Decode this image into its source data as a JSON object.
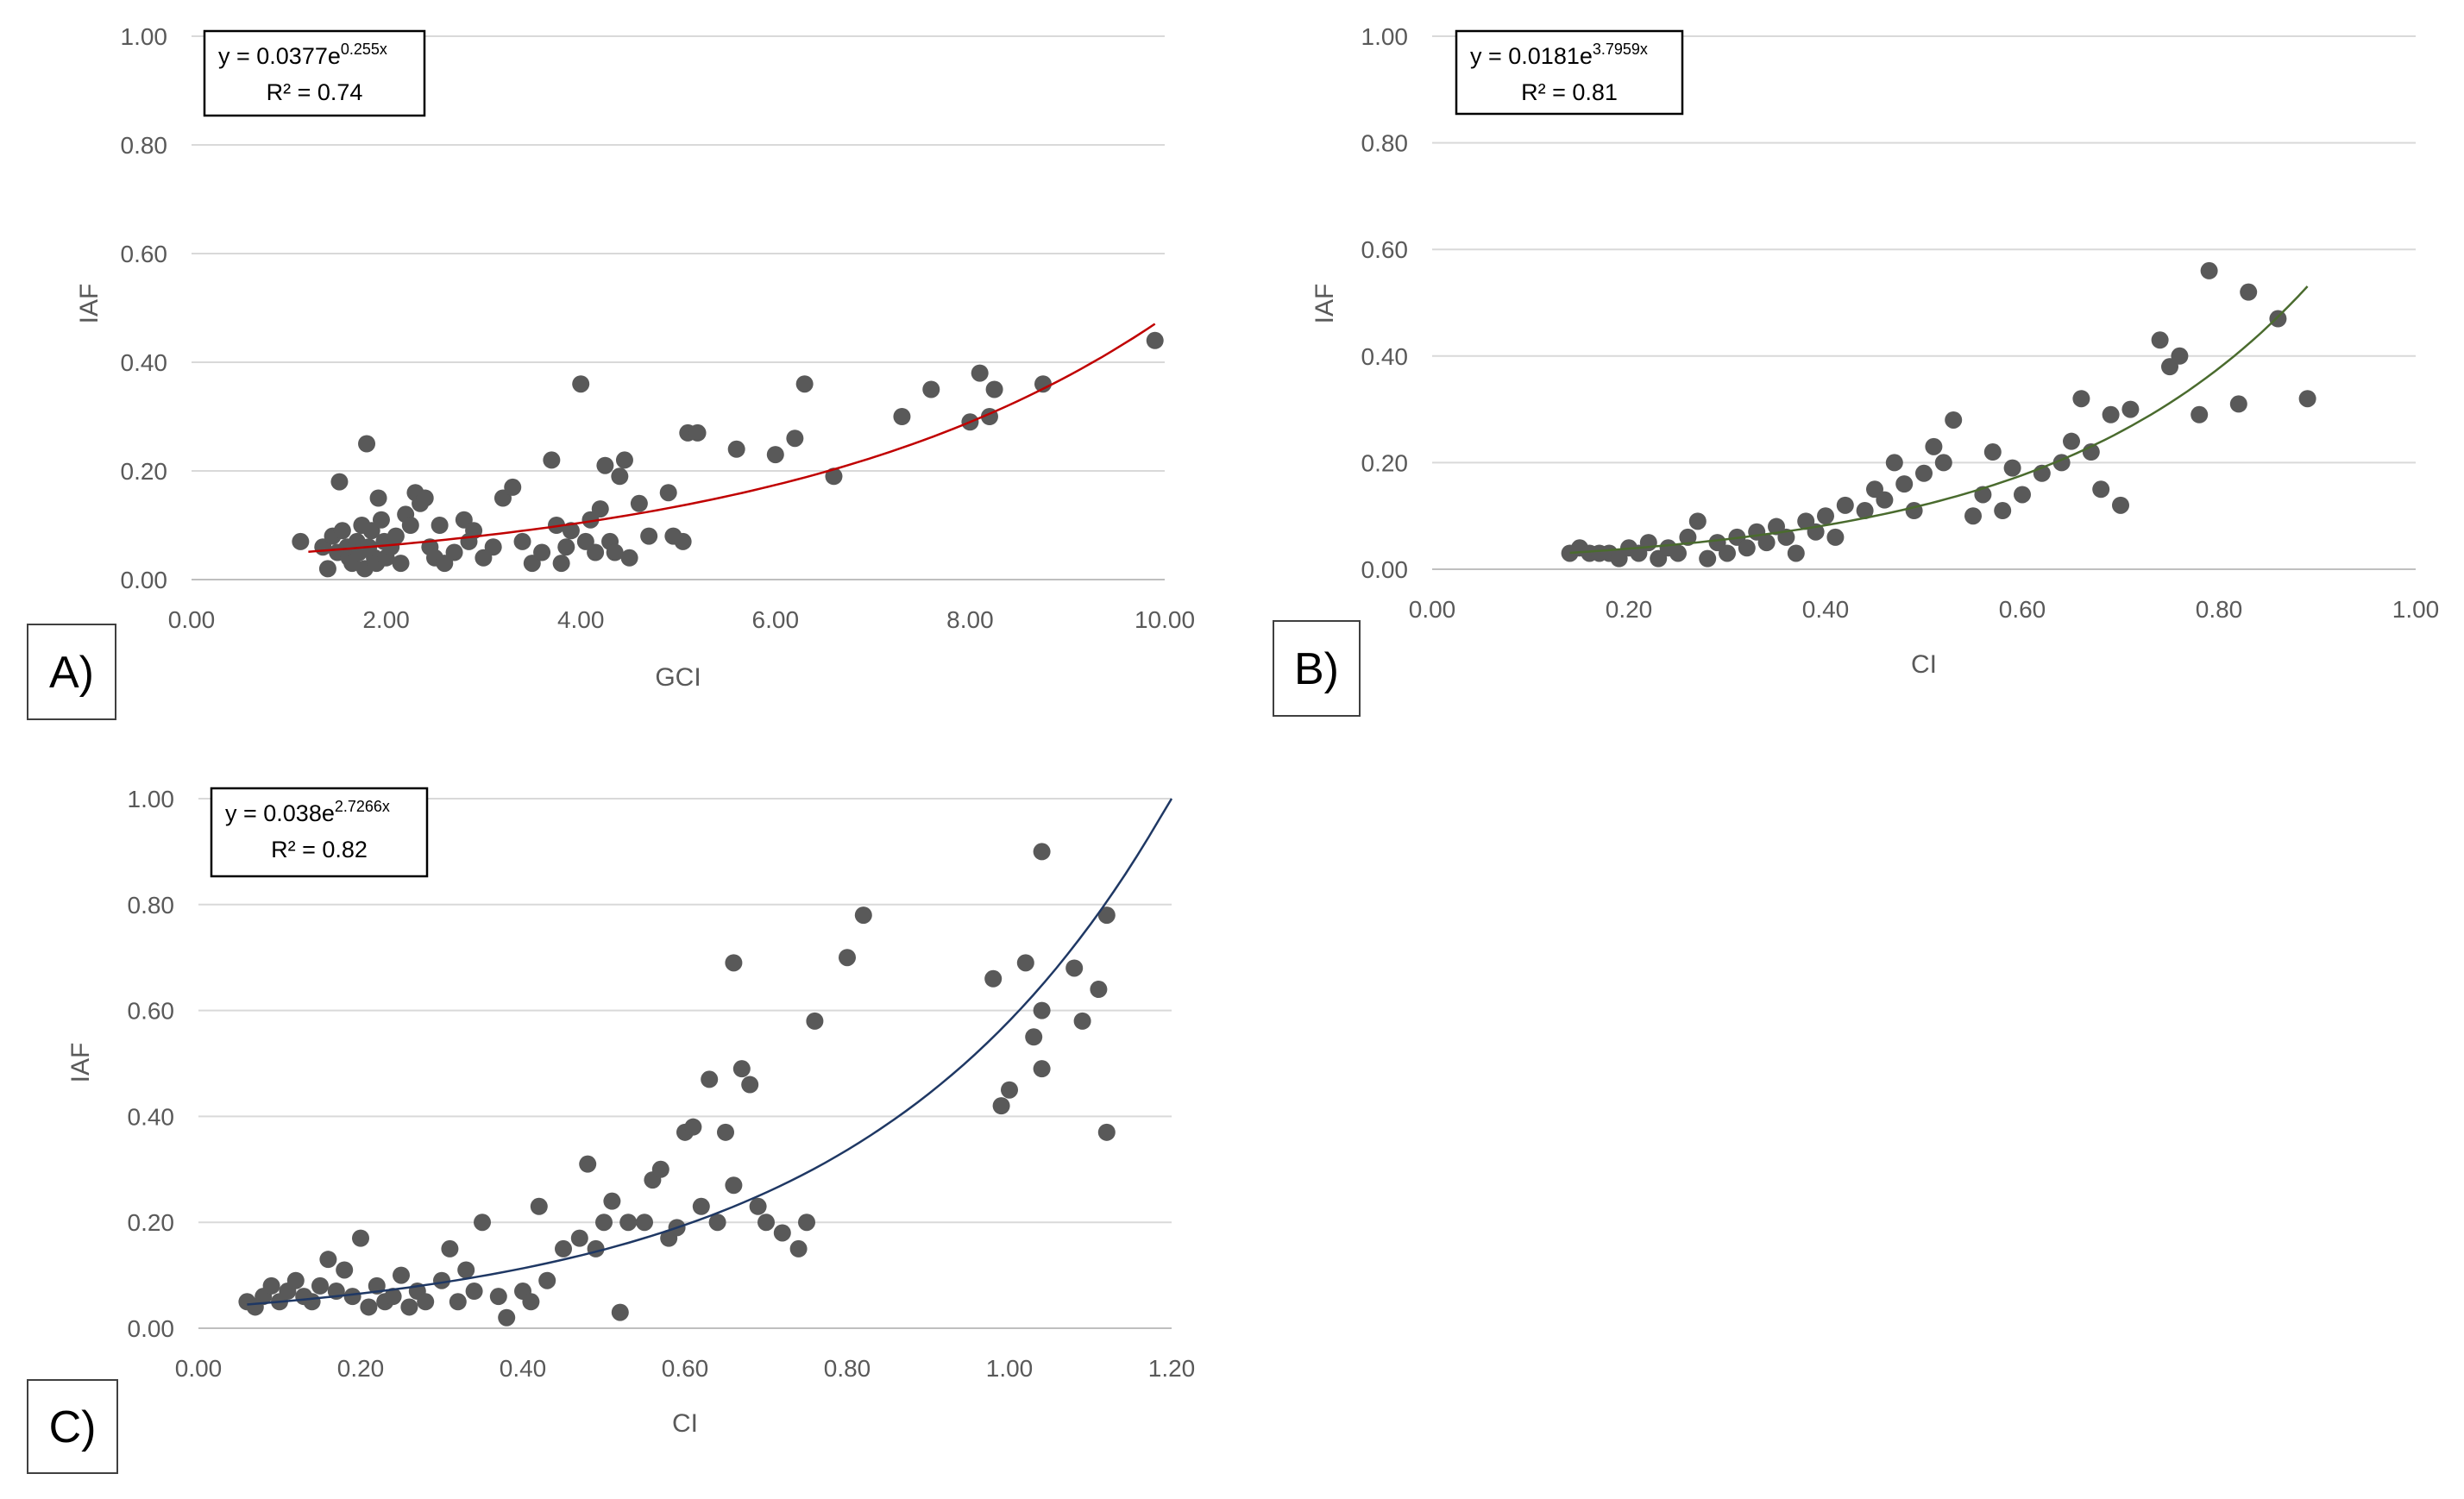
{
  "figure": {
    "panels": [
      {
        "label": "A)",
        "equation": {
          "lead": "y = 0.0377e",
          "exp": "0.255x"
        },
        "r2": "R² = 0.74",
        "xlabel": "GCI",
        "ylabel": "IAF"
      },
      {
        "label": "B)",
        "equation": {
          "lead": "y = 0.0181e",
          "exp": "3.7959x"
        },
        "r2": "R² = 0.81",
        "xlabel": "CI",
        "ylabel": "IAF"
      },
      {
        "label": "C)",
        "equation": {
          "lead": "y = 0.038e",
          "exp": "2.7266x"
        },
        "r2": "R² = 0.82",
        "xlabel": "CI",
        "ylabel": "IAF"
      }
    ]
  },
  "chart_data": [
    {
      "type": "scatter",
      "title": "",
      "xlabel": "GCI",
      "ylabel": "IAF",
      "xlim": [
        0,
        10
      ],
      "ylim": [
        0,
        1
      ],
      "xticks": [
        "0.00",
        "2.00",
        "4.00",
        "6.00",
        "8.00",
        "10.00"
      ],
      "yticks": [
        "0.00",
        "0.20",
        "0.40",
        "0.60",
        "0.80",
        "1.00"
      ],
      "trendline": {
        "type": "exponential",
        "a": 0.0377,
        "b": 0.255,
        "x_range": [
          1.2,
          9.9
        ],
        "color": "#c00000"
      },
      "equation": "y = 0.0377e^0.255x",
      "r2": "R² = 0.74",
      "points": [
        [
          1.12,
          0.07
        ],
        [
          1.35,
          0.06
        ],
        [
          1.4,
          0.02
        ],
        [
          1.45,
          0.08
        ],
        [
          1.5,
          0.05
        ],
        [
          1.52,
          0.18
        ],
        [
          1.55,
          0.09
        ],
        [
          1.6,
          0.06
        ],
        [
          1.62,
          0.04
        ],
        [
          1.65,
          0.03
        ],
        [
          1.7,
          0.07
        ],
        [
          1.72,
          0.05
        ],
        [
          1.75,
          0.1
        ],
        [
          1.78,
          0.02
        ],
        [
          1.8,
          0.25
        ],
        [
          1.82,
          0.06
        ],
        [
          1.85,
          0.09
        ],
        [
          1.88,
          0.04
        ],
        [
          1.9,
          0.03
        ],
        [
          1.92,
          0.15
        ],
        [
          1.95,
          0.11
        ],
        [
          1.98,
          0.07
        ],
        [
          2.0,
          0.04
        ],
        [
          2.05,
          0.06
        ],
        [
          2.1,
          0.08
        ],
        [
          2.15,
          0.03
        ],
        [
          2.2,
          0.12
        ],
        [
          2.25,
          0.1
        ],
        [
          2.3,
          0.16
        ],
        [
          2.35,
          0.14
        ],
        [
          2.4,
          0.15
        ],
        [
          2.45,
          0.06
        ],
        [
          2.5,
          0.04
        ],
        [
          2.55,
          0.1
        ],
        [
          2.6,
          0.03
        ],
        [
          2.7,
          0.05
        ],
        [
          2.8,
          0.11
        ],
        [
          2.85,
          0.07
        ],
        [
          2.9,
          0.09
        ],
        [
          3.0,
          0.04
        ],
        [
          3.1,
          0.06
        ],
        [
          3.2,
          0.15
        ],
        [
          3.3,
          0.17
        ],
        [
          3.4,
          0.07
        ],
        [
          3.5,
          0.03
        ],
        [
          3.6,
          0.05
        ],
        [
          3.7,
          0.22
        ],
        [
          3.75,
          0.1
        ],
        [
          3.8,
          0.03
        ],
        [
          3.85,
          0.06
        ],
        [
          3.9,
          0.09
        ],
        [
          4.0,
          0.36
        ],
        [
          4.05,
          0.07
        ],
        [
          4.1,
          0.11
        ],
        [
          4.15,
          0.05
        ],
        [
          4.2,
          0.13
        ],
        [
          4.25,
          0.21
        ],
        [
          4.3,
          0.07
        ],
        [
          4.35,
          0.05
        ],
        [
          4.4,
          0.19
        ],
        [
          4.45,
          0.22
        ],
        [
          4.5,
          0.04
        ],
        [
          4.6,
          0.14
        ],
        [
          4.7,
          0.08
        ],
        [
          4.9,
          0.16
        ],
        [
          4.95,
          0.08
        ],
        [
          5.05,
          0.07
        ],
        [
          5.1,
          0.27
        ],
        [
          5.2,
          0.27
        ],
        [
          5.6,
          0.24
        ],
        [
          6.0,
          0.23
        ],
        [
          6.2,
          0.26
        ],
        [
          6.3,
          0.36
        ],
        [
          6.6,
          0.19
        ],
        [
          7.3,
          0.3
        ],
        [
          7.6,
          0.35
        ],
        [
          8.0,
          0.29
        ],
        [
          8.1,
          0.38
        ],
        [
          8.2,
          0.3
        ],
        [
          8.25,
          0.35
        ],
        [
          8.75,
          0.36
        ],
        [
          9.9,
          0.44
        ]
      ]
    },
    {
      "type": "scatter",
      "title": "",
      "xlabel": "CI",
      "ylabel": "IAF",
      "xlim": [
        0,
        1
      ],
      "ylim": [
        0,
        1
      ],
      "xticks": [
        "0.00",
        "0.20",
        "0.40",
        "0.60",
        "0.80",
        "1.00"
      ],
      "yticks": [
        "0.00",
        "0.20",
        "0.40",
        "0.60",
        "0.80",
        "1.00"
      ],
      "trendline": {
        "type": "exponential",
        "a": 0.0181,
        "b": 3.7959,
        "x_range": [
          0.14,
          0.89
        ],
        "color": "#4a6b2e"
      },
      "equation": "y = 0.0181e^3.7959x",
      "r2": "R² = 0.81",
      "points": [
        [
          0.14,
          0.03
        ],
        [
          0.15,
          0.04
        ],
        [
          0.16,
          0.03
        ],
        [
          0.17,
          0.03
        ],
        [
          0.18,
          0.03
        ],
        [
          0.19,
          0.02
        ],
        [
          0.2,
          0.04
        ],
        [
          0.21,
          0.03
        ],
        [
          0.22,
          0.05
        ],
        [
          0.23,
          0.02
        ],
        [
          0.24,
          0.04
        ],
        [
          0.25,
          0.03
        ],
        [
          0.26,
          0.06
        ],
        [
          0.27,
          0.09
        ],
        [
          0.28,
          0.02
        ],
        [
          0.29,
          0.05
        ],
        [
          0.3,
          0.03
        ],
        [
          0.31,
          0.06
        ],
        [
          0.32,
          0.04
        ],
        [
          0.33,
          0.07
        ],
        [
          0.34,
          0.05
        ],
        [
          0.35,
          0.08
        ],
        [
          0.36,
          0.06
        ],
        [
          0.37,
          0.03
        ],
        [
          0.38,
          0.09
        ],
        [
          0.39,
          0.07
        ],
        [
          0.4,
          0.1
        ],
        [
          0.41,
          0.06
        ],
        [
          0.42,
          0.12
        ],
        [
          0.44,
          0.11
        ],
        [
          0.45,
          0.15
        ],
        [
          0.46,
          0.13
        ],
        [
          0.47,
          0.2
        ],
        [
          0.48,
          0.16
        ],
        [
          0.49,
          0.11
        ],
        [
          0.5,
          0.18
        ],
        [
          0.51,
          0.23
        ],
        [
          0.52,
          0.2
        ],
        [
          0.53,
          0.28
        ],
        [
          0.55,
          0.1
        ],
        [
          0.56,
          0.14
        ],
        [
          0.57,
          0.22
        ],
        [
          0.58,
          0.11
        ],
        [
          0.59,
          0.19
        ],
        [
          0.6,
          0.14
        ],
        [
          0.62,
          0.18
        ],
        [
          0.64,
          0.2
        ],
        [
          0.65,
          0.24
        ],
        [
          0.66,
          0.32
        ],
        [
          0.67,
          0.22
        ],
        [
          0.68,
          0.15
        ],
        [
          0.69,
          0.29
        ],
        [
          0.7,
          0.12
        ],
        [
          0.71,
          0.3
        ],
        [
          0.74,
          0.43
        ],
        [
          0.75,
          0.38
        ],
        [
          0.76,
          0.4
        ],
        [
          0.78,
          0.29
        ],
        [
          0.79,
          0.56
        ],
        [
          0.82,
          0.31
        ],
        [
          0.83,
          0.52
        ],
        [
          0.86,
          0.47
        ],
        [
          0.89,
          0.32
        ]
      ]
    },
    {
      "type": "scatter",
      "title": "",
      "xlabel": "CI",
      "ylabel": "IAF",
      "xlim": [
        0,
        1.2
      ],
      "ylim": [
        0,
        1
      ],
      "xticks": [
        "0.00",
        "0.20",
        "0.40",
        "0.60",
        "0.80",
        "1.00",
        "1.20"
      ],
      "yticks": [
        "0.00",
        "0.20",
        "0.40",
        "0.60",
        "0.80",
        "1.00"
      ],
      "trendline": {
        "type": "exponential",
        "a": 0.038,
        "b": 2.7266,
        "x_range": [
          0.06,
          1.2
        ],
        "color": "#1f3864"
      },
      "equation": "y = 0.038e^2.7266x",
      "r2": "R² = 0.82",
      "points": [
        [
          0.06,
          0.05
        ],
        [
          0.07,
          0.04
        ],
        [
          0.08,
          0.06
        ],
        [
          0.09,
          0.08
        ],
        [
          0.1,
          0.05
        ],
        [
          0.11,
          0.07
        ],
        [
          0.12,
          0.09
        ],
        [
          0.13,
          0.06
        ],
        [
          0.14,
          0.05
        ],
        [
          0.15,
          0.08
        ],
        [
          0.16,
          0.13
        ],
        [
          0.17,
          0.07
        ],
        [
          0.18,
          0.11
        ],
        [
          0.19,
          0.06
        ],
        [
          0.2,
          0.17
        ],
        [
          0.21,
          0.04
        ],
        [
          0.22,
          0.08
        ],
        [
          0.23,
          0.05
        ],
        [
          0.24,
          0.06
        ],
        [
          0.25,
          0.1
        ],
        [
          0.26,
          0.04
        ],
        [
          0.27,
          0.07
        ],
        [
          0.28,
          0.05
        ],
        [
          0.3,
          0.09
        ],
        [
          0.31,
          0.15
        ],
        [
          0.32,
          0.05
        ],
        [
          0.33,
          0.11
        ],
        [
          0.34,
          0.07
        ],
        [
          0.35,
          0.2
        ],
        [
          0.37,
          0.06
        ],
        [
          0.38,
          0.02
        ],
        [
          0.4,
          0.07
        ],
        [
          0.41,
          0.05
        ],
        [
          0.42,
          0.23
        ],
        [
          0.43,
          0.09
        ],
        [
          0.45,
          0.15
        ],
        [
          0.47,
          0.17
        ],
        [
          0.48,
          0.31
        ],
        [
          0.49,
          0.15
        ],
        [
          0.5,
          0.2
        ],
        [
          0.51,
          0.24
        ],
        [
          0.52,
          0.03
        ],
        [
          0.53,
          0.2
        ],
        [
          0.55,
          0.2
        ],
        [
          0.56,
          0.28
        ],
        [
          0.57,
          0.3
        ],
        [
          0.58,
          0.17
        ],
        [
          0.59,
          0.19
        ],
        [
          0.6,
          0.37
        ],
        [
          0.61,
          0.38
        ],
        [
          0.62,
          0.23
        ],
        [
          0.63,
          0.47
        ],
        [
          0.64,
          0.2
        ],
        [
          0.65,
          0.37
        ],
        [
          0.66,
          0.69
        ],
        [
          0.66,
          0.27
        ],
        [
          0.67,
          0.49
        ],
        [
          0.68,
          0.46
        ],
        [
          0.69,
          0.23
        ],
        [
          0.7,
          0.2
        ],
        [
          0.72,
          0.18
        ],
        [
          0.74,
          0.15
        ],
        [
          0.75,
          0.2
        ],
        [
          0.76,
          0.58
        ],
        [
          0.8,
          0.7
        ],
        [
          0.82,
          0.78
        ],
        [
          0.98,
          0.66
        ],
        [
          0.99,
          0.42
        ],
        [
          1.0,
          0.45
        ],
        [
          1.02,
          0.69
        ],
        [
          1.03,
          0.55
        ],
        [
          1.04,
          0.9
        ],
        [
          1.04,
          0.6
        ],
        [
          1.04,
          0.49
        ],
        [
          1.08,
          0.68
        ],
        [
          1.09,
          0.58
        ],
        [
          1.11,
          0.64
        ],
        [
          1.12,
          0.78
        ],
        [
          1.12,
          0.37
        ]
      ]
    }
  ]
}
